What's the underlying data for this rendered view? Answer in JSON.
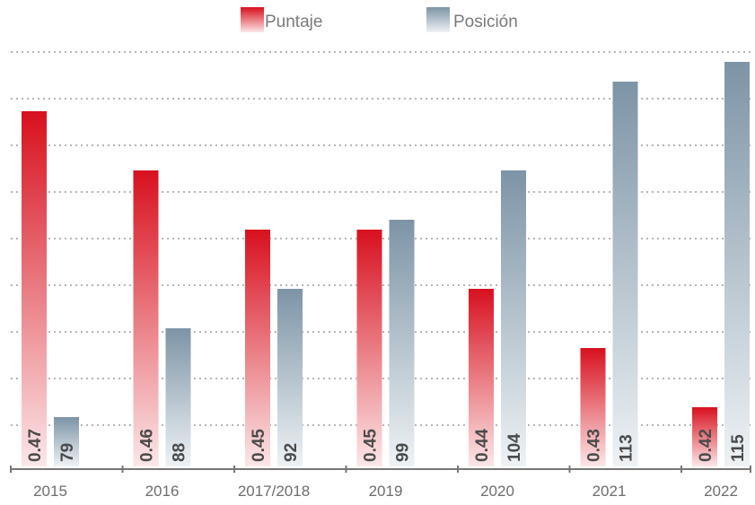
{
  "chart_data": {
    "type": "bar",
    "title": "",
    "xlabel": "",
    "ylabel": "",
    "categories": [
      "2015",
      "2016",
      "2017/2018",
      "2019",
      "2020",
      "2021",
      "2022"
    ],
    "series": [
      {
        "name": "Puntaje",
        "values": [
          0.47,
          0.46,
          0.45,
          0.45,
          0.44,
          0.43,
          0.42
        ],
        "labels": [
          "0.47",
          "0.46",
          "0.45",
          "0.45",
          "0.44",
          "0.43",
          "0.42"
        ],
        "ylim": [
          0.41,
          0.48
        ],
        "color_top": "#d8101e",
        "color_bottom": "#fbe7e8"
      },
      {
        "name": "Posición",
        "values": [
          79,
          88,
          92,
          99,
          104,
          113,
          115
        ],
        "labels": [
          "79",
          "88",
          "92",
          "99",
          "104",
          "113",
          "115"
        ],
        "ylim": [
          74,
          116
        ],
        "color_top": "#7d94a6",
        "color_bottom": "#eef2f5"
      }
    ],
    "grid": true,
    "legend_position": "top-center",
    "gridline_color": "#b5b5b5",
    "axis_color": "#777777"
  }
}
